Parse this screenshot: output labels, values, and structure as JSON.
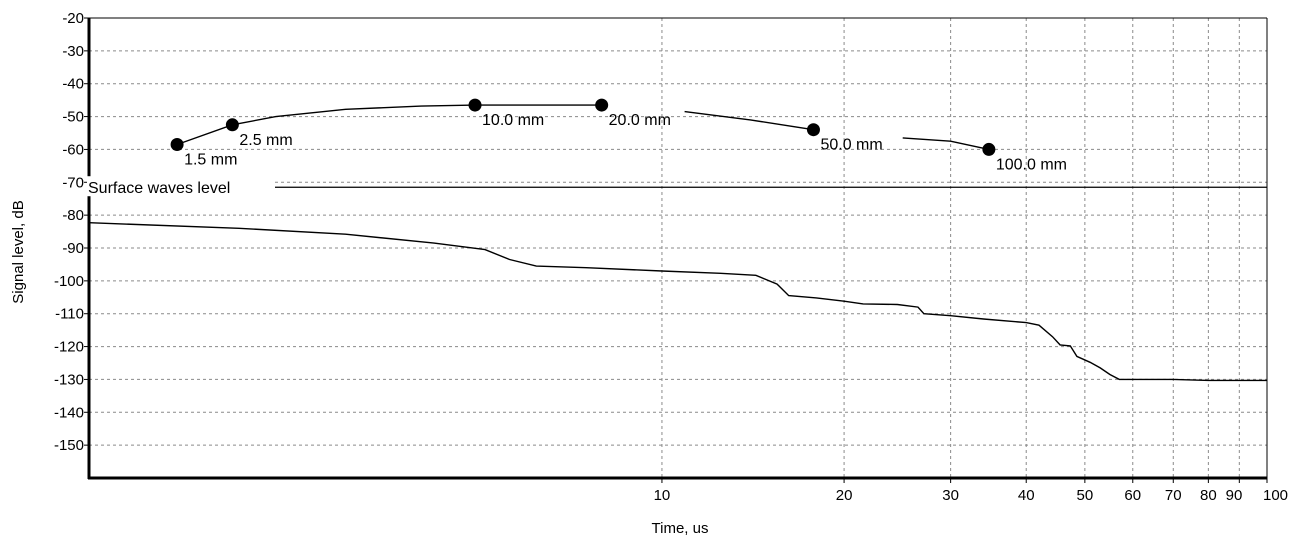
{
  "chart_data": {
    "type": "line",
    "xlabel": "Time, us",
    "ylabel": "Signal level, dB",
    "x_scale": "log",
    "xlim": [
      1.13,
      100
    ],
    "ylim": [
      -160,
      -20
    ],
    "x_tick_labels": [
      {
        "v": 10,
        "label": "10"
      },
      {
        "v": 20,
        "label": "20"
      },
      {
        "v": 30,
        "label": "30"
      },
      {
        "v": 40,
        "label": "40"
      },
      {
        "v": 50,
        "label": "50"
      },
      {
        "v": 60,
        "label": "60"
      },
      {
        "v": 70,
        "label": "70"
      },
      {
        "v": 80,
        "label": "80"
      },
      {
        "v": 90,
        "label": "90"
      },
      {
        "v": 100,
        "label": "100"
      }
    ],
    "y_ticks": [
      -20,
      -30,
      -40,
      -50,
      -60,
      -70,
      -80,
      -90,
      -100,
      -110,
      -120,
      -130,
      -140,
      -150
    ],
    "grid": true,
    "surface_waves": {
      "label": "Surface waves level",
      "y": -71.5
    },
    "marker_points": [
      {
        "x": 1.58,
        "y": -58.5,
        "label": "1.5 mm"
      },
      {
        "x": 1.95,
        "y": -52.5,
        "label": "2.5 mm"
      },
      {
        "x": 4.91,
        "y": -46.5,
        "label": "10.0 mm"
      },
      {
        "x": 7.95,
        "y": -46.5,
        "label": "20.0 mm"
      },
      {
        "x": 17.8,
        "y": -54.0,
        "label": "50.0 mm"
      },
      {
        "x": 34.7,
        "y": -60.0,
        "label": "100.0 mm"
      }
    ],
    "upper_curve_segments": [
      [
        [
          1.58,
          -58.5
        ],
        [
          1.95,
          -52.5
        ],
        [
          2.3,
          -50
        ],
        [
          3.0,
          -47.8
        ],
        [
          4.0,
          -46.8
        ],
        [
          4.91,
          -46.5
        ],
        [
          6.5,
          -46.5
        ],
        [
          7.95,
          -46.5
        ]
      ],
      [
        [
          10.9,
          -48.5
        ],
        [
          14,
          -51
        ],
        [
          17.8,
          -54.0
        ]
      ],
      [
        [
          25,
          -56.5
        ],
        [
          30,
          -57.5
        ],
        [
          34.7,
          -60.0
        ]
      ]
    ],
    "lower_curve": [
      [
        1.13,
        -82.3
      ],
      [
        2.0,
        -84
      ],
      [
        3.0,
        -85.8
      ],
      [
        4.2,
        -88.5
      ],
      [
        5.1,
        -90.5
      ],
      [
        5.6,
        -93.5
      ],
      [
        6.2,
        -95.5
      ],
      [
        7.5,
        -96.0
      ],
      [
        10,
        -97.0
      ],
      [
        12.5,
        -97.7
      ],
      [
        14.3,
        -98.3
      ],
      [
        15.5,
        -101
      ],
      [
        16.2,
        -104.5
      ],
      [
        18,
        -105.2
      ],
      [
        20,
        -106.2
      ],
      [
        21.5,
        -107
      ],
      [
        24.5,
        -107.2
      ],
      [
        26.5,
        -108
      ],
      [
        27.1,
        -110
      ],
      [
        30,
        -110.6
      ],
      [
        34,
        -111.6
      ],
      [
        40,
        -112.7
      ],
      [
        42,
        -113.5
      ],
      [
        44.2,
        -117
      ],
      [
        45.5,
        -119.5
      ],
      [
        47.3,
        -119.8
      ],
      [
        48.5,
        -123
      ],
      [
        51,
        -124.8
      ],
      [
        53,
        -126.5
      ],
      [
        55,
        -128.5
      ],
      [
        57,
        -130.0
      ],
      [
        70,
        -130.0
      ],
      [
        80,
        -130.3
      ],
      [
        100,
        -130.3
      ]
    ]
  }
}
